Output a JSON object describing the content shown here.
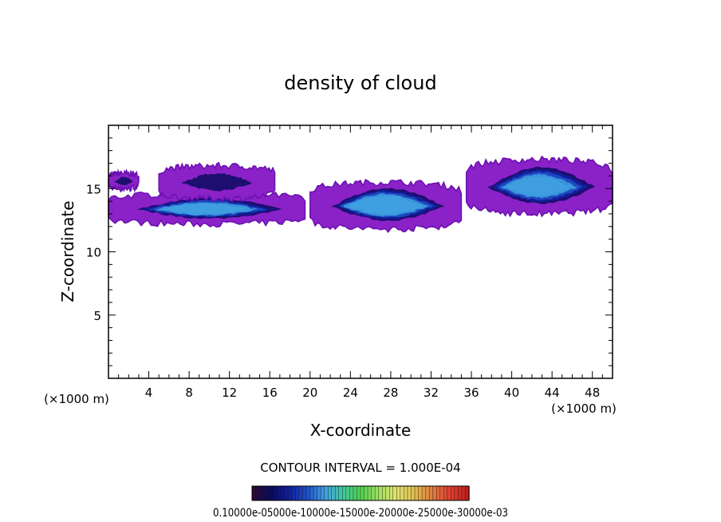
{
  "chart_data": {
    "type": "heatmap",
    "title": "density of cloud",
    "xlabel": "X-coordinate",
    "ylabel": "Z-coordinate",
    "x_unit_note": "(×1000 m)",
    "y_unit_note": "(×1000 m)",
    "xlim": [
      0,
      50
    ],
    "ylim": [
      0,
      20
    ],
    "x_ticks": [
      4,
      8,
      12,
      16,
      20,
      24,
      28,
      32,
      36,
      40,
      44,
      48
    ],
    "y_ticks": [
      5,
      10,
      15
    ],
    "grid": false,
    "colorbar": {
      "contour_interval_label": "CONTOUR INTERVAL = 1.000E-04",
      "scale_label": "0.10000e-05000e-10000e-15000e-20000e-25000e-30000e-03",
      "min": 0.0001,
      "max": 0.0013,
      "interval": 0.0001,
      "colors": [
        "#2a0a38",
        "#0a0a60",
        "#1020a0",
        "#2050c8",
        "#40a0e0",
        "#40c8a0",
        "#50d050",
        "#a0e060",
        "#e0e070",
        "#e0c050",
        "#e08040",
        "#e04030",
        "#c02020"
      ]
    },
    "cloud_regions": [
      {
        "x_start": 0,
        "x_end": 3,
        "z_bottom": 15.0,
        "z_top": 16.2,
        "max_level": 0.0002
      },
      {
        "x_start": 0,
        "x_end": 19.5,
        "z_bottom": 12.2,
        "z_top": 14.6,
        "max_level": 0.0006
      },
      {
        "x_start": 5,
        "x_end": 16.5,
        "z_bottom": 14.2,
        "z_top": 16.8,
        "max_level": 0.0002
      },
      {
        "x_start": 20,
        "x_end": 35,
        "z_bottom": 11.8,
        "z_top": 15.5,
        "max_level": 0.0007
      },
      {
        "x_start": 35.5,
        "x_end": 50,
        "z_bottom": 13.0,
        "z_top": 17.3,
        "max_level": 0.0006
      }
    ]
  }
}
